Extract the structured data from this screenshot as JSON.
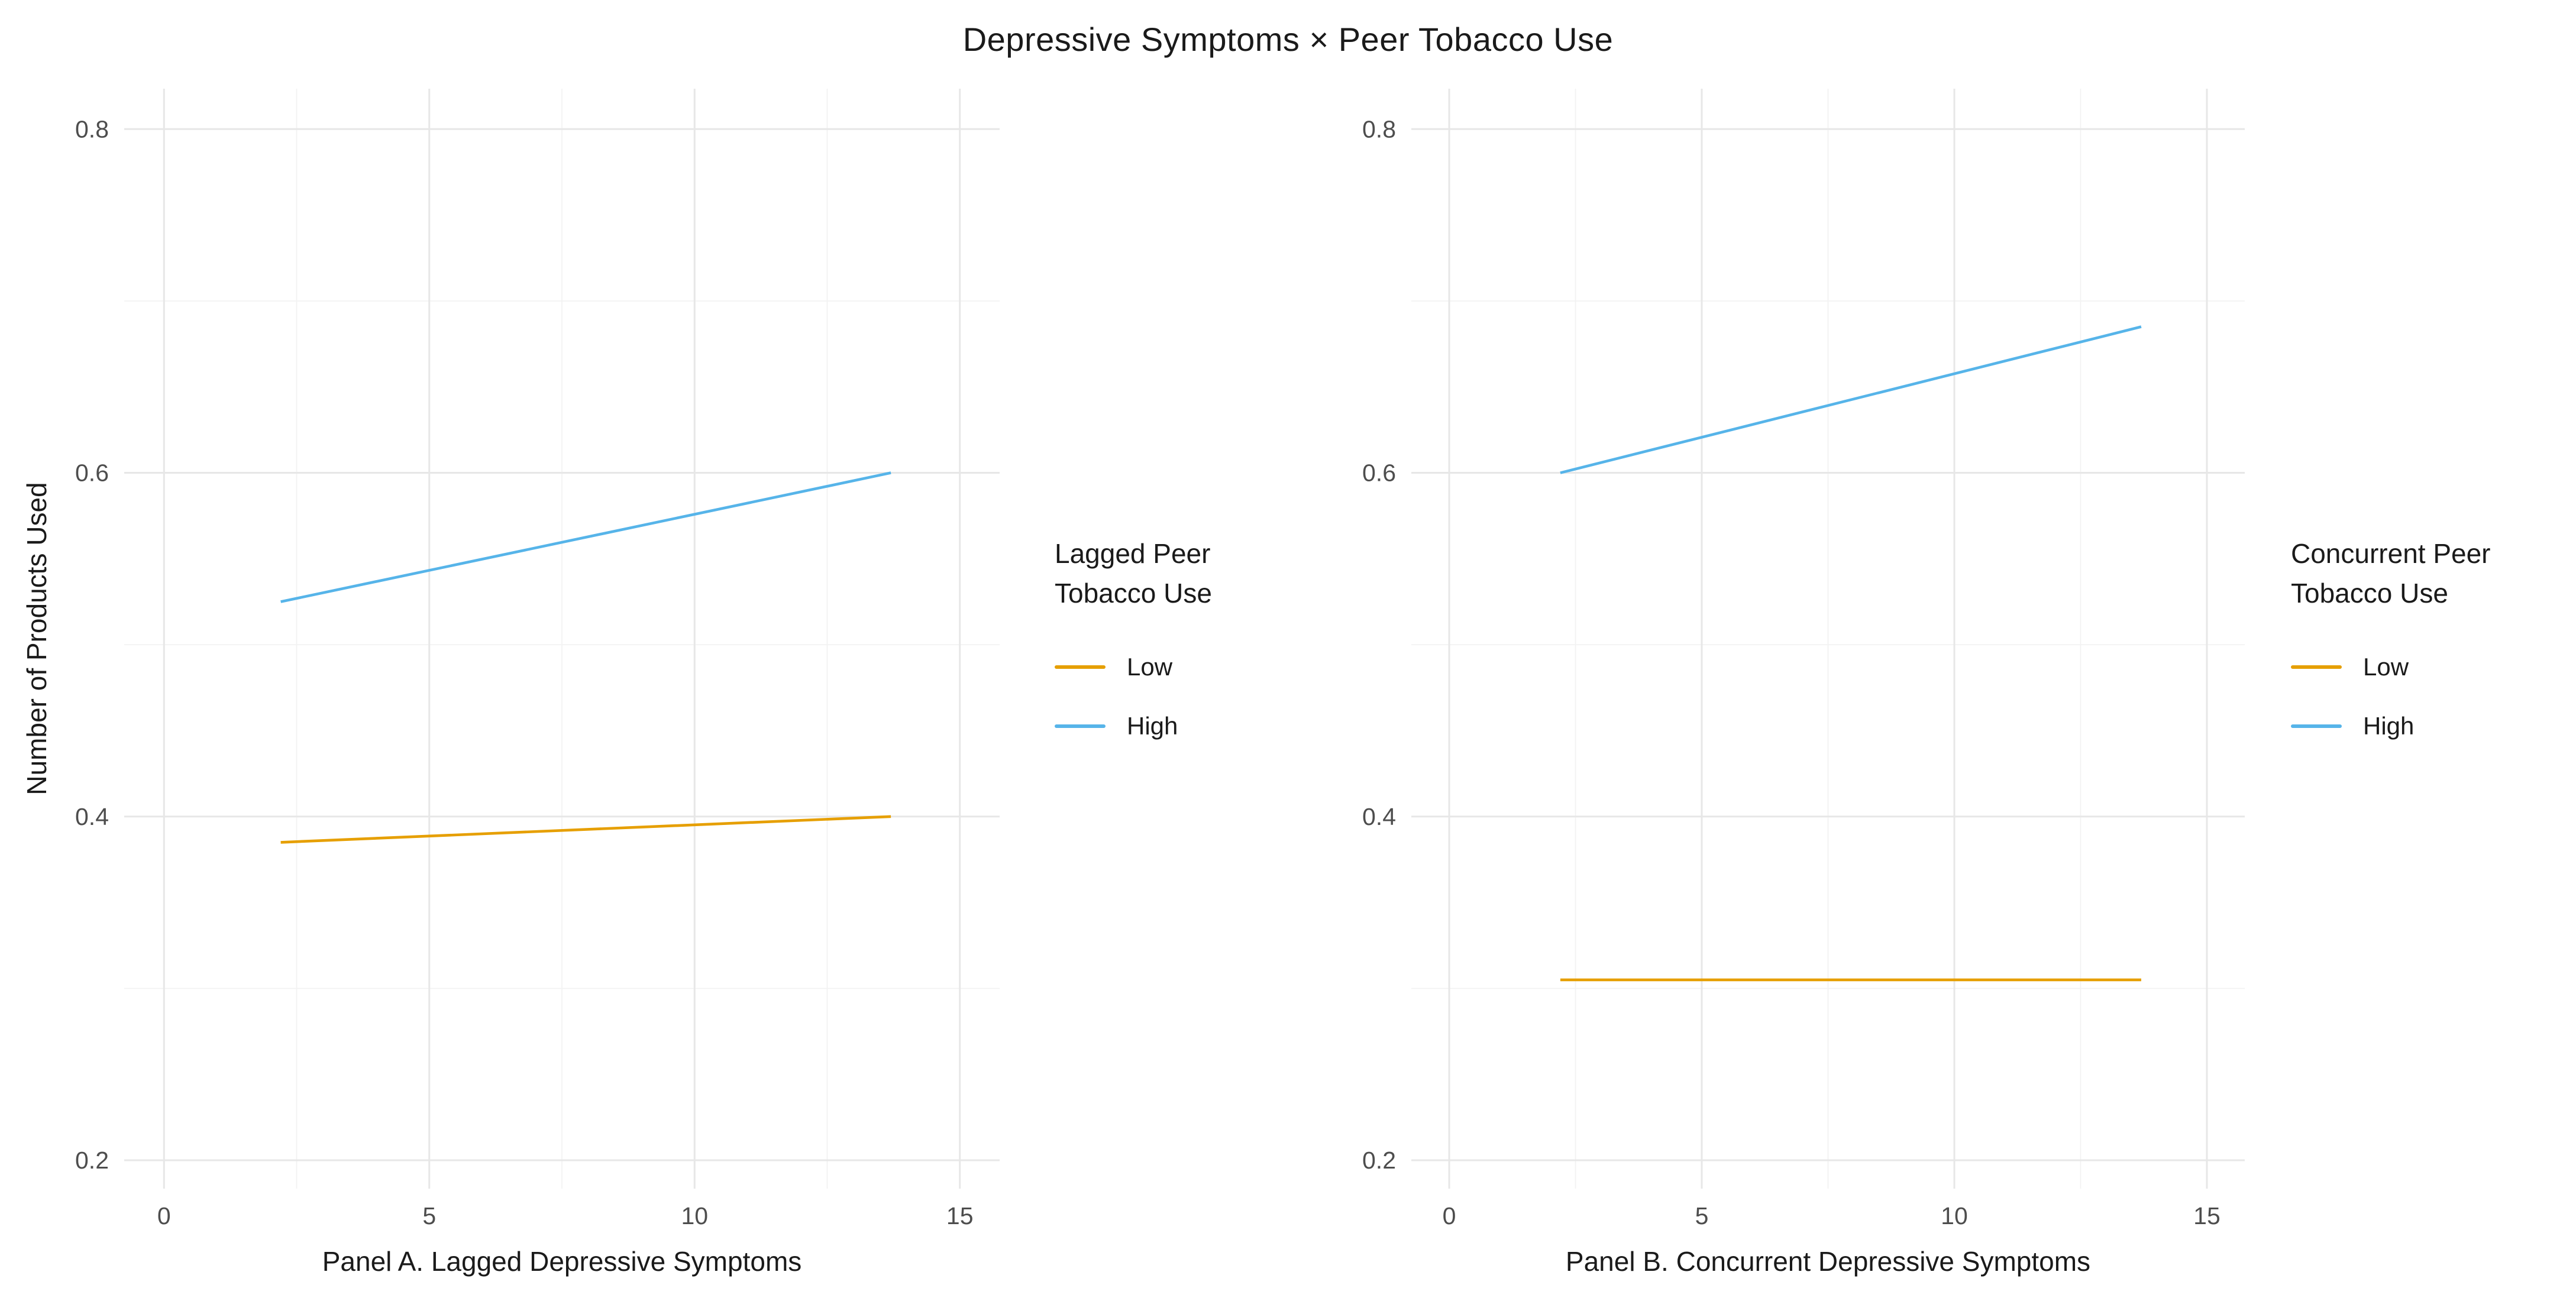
{
  "title": "Depressive Symptoms × Peer Tobacco Use",
  "ylabel": "Number of Products Used",
  "colors": {
    "low": "#E69F00",
    "high": "#56B4E9",
    "grid_major": "#E7E7E7",
    "grid_minor": "#F2F2F2",
    "tick_text": "#4D4D4D",
    "text": "#1A1A1A",
    "background": "#FFFFFF"
  },
  "chart_data": [
    {
      "type": "line",
      "panel": "A",
      "xlabel": "Panel A. Lagged Depressive Symptoms",
      "legend_title": "Lagged Peer\nTobacco Use",
      "legend_position": "right",
      "grid": true,
      "x_ticks": [
        0,
        5,
        10,
        15
      ],
      "x_tick_labels": [
        "0",
        "5",
        "10",
        "15"
      ],
      "x_minor_ticks": [
        2.5,
        7.5,
        12.5
      ],
      "y_ticks": [
        0.2,
        0.4,
        0.6,
        0.8
      ],
      "y_tick_labels": [
        "0.2",
        "0.4",
        "0.6",
        "0.8"
      ],
      "y_minor_ticks": [
        0.3,
        0.5,
        0.7
      ],
      "xlim": [
        -0.75,
        15.75
      ],
      "ylim": [
        0.1835,
        0.8235
      ],
      "series": [
        {
          "name": "Low",
          "color_key": "low",
          "x": [
            2.2,
            13.7
          ],
          "y": [
            0.385,
            0.4
          ]
        },
        {
          "name": "High",
          "color_key": "high",
          "x": [
            2.2,
            13.7
          ],
          "y": [
            0.525,
            0.6
          ]
        }
      ]
    },
    {
      "type": "line",
      "panel": "B",
      "xlabel": "Panel B. Concurrent Depressive Symptoms",
      "legend_title": "Concurrent Peer\nTobacco Use",
      "legend_position": "right",
      "grid": true,
      "x_ticks": [
        0,
        5,
        10,
        15
      ],
      "x_tick_labels": [
        "0",
        "5",
        "10",
        "15"
      ],
      "x_minor_ticks": [
        2.5,
        7.5,
        12.5
      ],
      "y_ticks": [
        0.2,
        0.4,
        0.6,
        0.8
      ],
      "y_tick_labels": [
        "0.2",
        "0.4",
        "0.6",
        "0.8"
      ],
      "y_minor_ticks": [
        0.3,
        0.5,
        0.7
      ],
      "xlim": [
        -0.75,
        15.75
      ],
      "ylim": [
        0.1835,
        0.8235
      ],
      "series": [
        {
          "name": "Low",
          "color_key": "low",
          "x": [
            2.2,
            13.7
          ],
          "y": [
            0.305,
            0.305
          ]
        },
        {
          "name": "High",
          "color_key": "high",
          "x": [
            2.2,
            13.7
          ],
          "y": [
            0.6,
            0.685
          ]
        }
      ]
    }
  ]
}
